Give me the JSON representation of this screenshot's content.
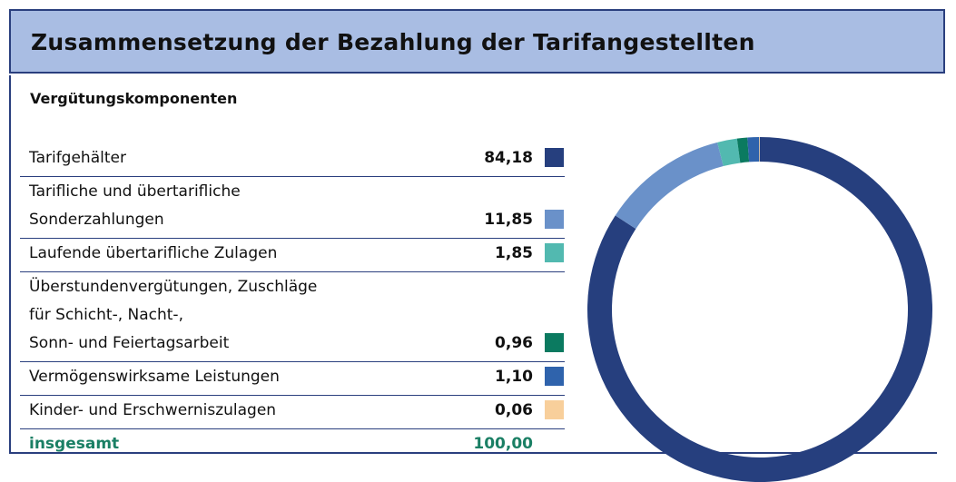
{
  "chart_data": {
    "type": "donut",
    "title": "Zusammensetzung der Bezahlung der Tarifangestellten",
    "subtitle": "Vergütungskomponenten",
    "categories": [
      "Tarifgehälter",
      "Tarifliche und übertarifliche\nSonderzahlungen",
      "Laufende übertarifliche Zulagen",
      "Überstundenvergütungen, Zuschläge\nfür Schicht-, Nacht-,\nSonn- und Feiertagsarbeit",
      "Vermögenswirksame Leistungen",
      "Kinder- und Erschwerniszulagen"
    ],
    "values": [
      84.18,
      11.85,
      1.85,
      0.96,
      1.1,
      0.06
    ],
    "value_labels": [
      "84,18",
      "11,85",
      "1,85",
      "0,96",
      "1,10",
      "0,06"
    ],
    "colors": [
      "#263f7e",
      "#6a91c9",
      "#52b9b0",
      "#0b7a60",
      "#2f63ac",
      "#f8cf9b"
    ],
    "total_name": "insgesamt",
    "total": 100,
    "total_label": "100,00"
  }
}
